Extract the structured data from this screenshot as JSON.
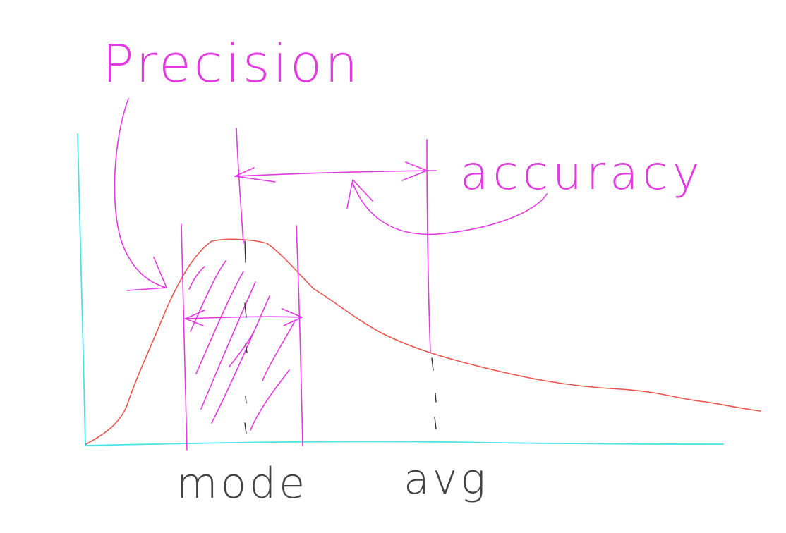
{
  "labels": {
    "precision": "Precision",
    "accuracy": "accuracy",
    "mode": "mode",
    "avg": "avg"
  },
  "colors": {
    "annotation": "#e23be0",
    "axis": "#49e3e6",
    "curve": "#e8564e",
    "marker": "#333333",
    "background": "#ffffff"
  }
}
